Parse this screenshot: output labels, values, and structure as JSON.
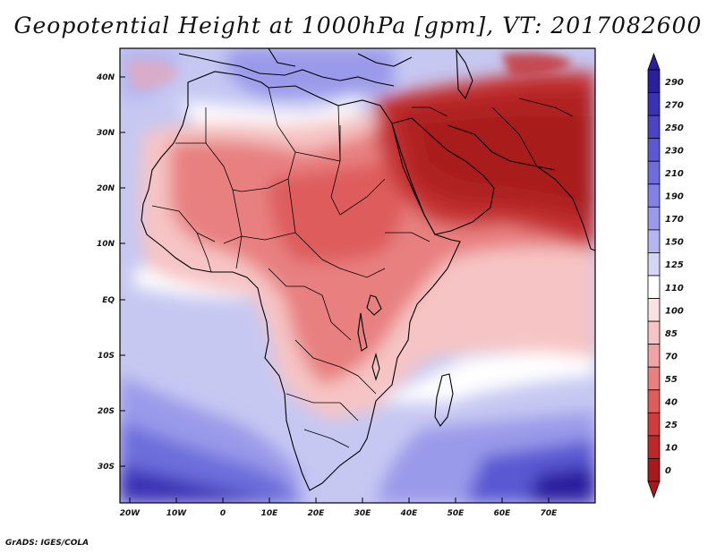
{
  "title": "Geopotential Height at 1000hPa [gpm], VT: 2017082600",
  "credit": "GrADS: IGES/COLA",
  "map": {
    "lat_labels": [
      "40N",
      "30N",
      "20N",
      "10N",
      "EQ",
      "10S",
      "20S",
      "30S"
    ],
    "lon_labels": [
      "20W",
      "10W",
      "0",
      "10E",
      "20E",
      "30E",
      "40E",
      "50E",
      "60E",
      "70E"
    ],
    "region": "Africa, Arabian Peninsula and Indian subcontinent"
  },
  "colorbar": {
    "levels": [
      "290",
      "270",
      "250",
      "230",
      "210",
      "190",
      "170",
      "150",
      "125",
      "110",
      "100",
      "85",
      "70",
      "55",
      "40",
      "25",
      "10",
      "0"
    ],
    "colors": [
      "#2a1f9e",
      "#3a32b4",
      "#4a44c4",
      "#5a58d2",
      "#6d6ddc",
      "#8282e4",
      "#9a9aea",
      "#b4b6f0",
      "#d4d6f6",
      "#ffffff",
      "#fbe2e2",
      "#f6c4c4",
      "#f0a4a4",
      "#e88080",
      "#de5c5c",
      "#d03c3c",
      "#bc2828",
      "#a81a1a"
    ]
  }
}
